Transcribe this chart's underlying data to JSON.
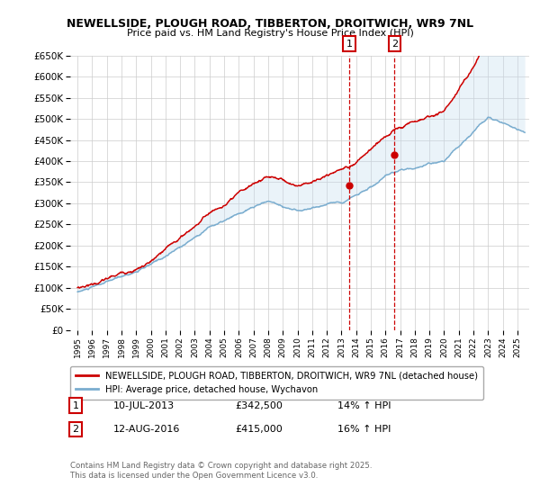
{
  "title": "NEWELLSIDE, PLOUGH ROAD, TIBBERTON, DROITWICH, WR9 7NL",
  "subtitle": "Price paid vs. HM Land Registry's House Price Index (HPI)",
  "legend_label_red": "NEWELLSIDE, PLOUGH ROAD, TIBBERTON, DROITWICH, WR9 7NL (detached house)",
  "legend_label_blue": "HPI: Average price, detached house, Wychavon",
  "annotation1_label": "1",
  "annotation1_date": "10-JUL-2013",
  "annotation1_price": "£342,500",
  "annotation1_hpi": "14% ↑ HPI",
  "annotation2_label": "2",
  "annotation2_date": "12-AUG-2016",
  "annotation2_price": "£415,000",
  "annotation2_hpi": "16% ↑ HPI",
  "footer_line1": "Contains HM Land Registry data © Crown copyright and database right 2025.",
  "footer_line2": "This data is licensed under the Open Government Licence v3.0.",
  "ylim_min": 0,
  "ylim_max": 650000,
  "color_red": "#cc0000",
  "color_blue": "#7aadcf",
  "color_grid": "#cccccc",
  "color_annotation_box": "#cc0000",
  "color_vline": "#cc0000",
  "color_shading": "#c5ddf0",
  "year_start": 1995,
  "year_end": 2025,
  "sale1_year": 2013.53,
  "sale1_price": 342500,
  "sale2_year": 2016.62,
  "sale2_price": 415000
}
